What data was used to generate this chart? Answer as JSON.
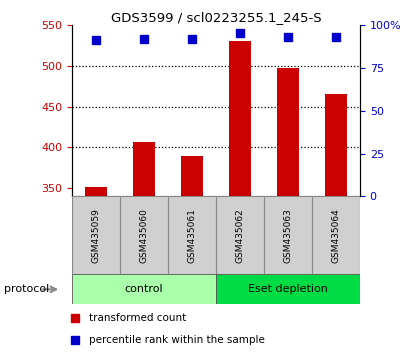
{
  "title": "GDS3599 / scl0223255.1_245-S",
  "categories": [
    "GSM435059",
    "GSM435060",
    "GSM435061",
    "GSM435062",
    "GSM435063",
    "GSM435064"
  ],
  "red_values": [
    351,
    407,
    390,
    530,
    497,
    465
  ],
  "blue_values": [
    91,
    92,
    92,
    95,
    93,
    93
  ],
  "ylim_left": [
    340,
    550
  ],
  "ylim_right": [
    0,
    100
  ],
  "left_ticks": [
    350,
    400,
    450,
    500,
    550
  ],
  "right_ticks": [
    0,
    25,
    50,
    75,
    100
  ],
  "right_tick_labels": [
    "0",
    "25",
    "50",
    "75",
    "100%"
  ],
  "hlines": [
    400,
    450,
    500
  ],
  "bar_color": "#cc0000",
  "dot_color": "#0000cc",
  "protocol_groups": [
    {
      "label": "control",
      "start": 0,
      "end": 3,
      "color": "#aaffaa"
    },
    {
      "label": "Eset depletion",
      "start": 3,
      "end": 6,
      "color": "#00dd44"
    }
  ],
  "sample_box_color": "#d0d0d0",
  "sample_box_edge": "#888888",
  "protocol_label": "protocol",
  "legend_items": [
    {
      "color": "#cc0000",
      "marker": "s",
      "label": "transformed count"
    },
    {
      "color": "#0000cc",
      "marker": "s",
      "label": "percentile rank within the sample"
    }
  ],
  "left_tick_color": "#cc0000",
  "right_tick_color": "#0000cc",
  "bg_color": "#ffffff",
  "plot_bg": "#ffffff",
  "bar_width": 0.45,
  "figsize": [
    4.0,
    3.54
  ],
  "dpi": 100
}
